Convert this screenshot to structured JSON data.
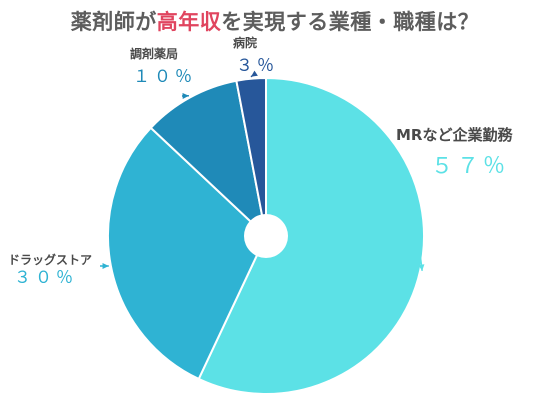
{
  "title": {
    "before": "薬剤師が",
    "highlight": "高年収",
    "after": "を実現する業種・職種は？"
  },
  "colors": {
    "title": "#5d5d5d",
    "highlight": "#e0455f",
    "label_name": "#4a4a4a"
  },
  "chart_data": {
    "type": "pie",
    "title": "薬剤師が高年収を実現する業種・職種は？",
    "unit": "％",
    "donut_hole": true,
    "slices": [
      {
        "label": "MRなど企業勤務",
        "value": 57,
        "display": "５７％",
        "color": "#5ce1e6"
      },
      {
        "label": "ドラッグストア",
        "value": 30,
        "display": "３０％",
        "color": "#2fb3d3"
      },
      {
        "label": "調剤薬局",
        "value": 10,
        "display": "１０％",
        "color": "#1f8ab8"
      },
      {
        "label": "病院",
        "value": 3,
        "display": "３％",
        "color": "#27579a"
      }
    ]
  }
}
